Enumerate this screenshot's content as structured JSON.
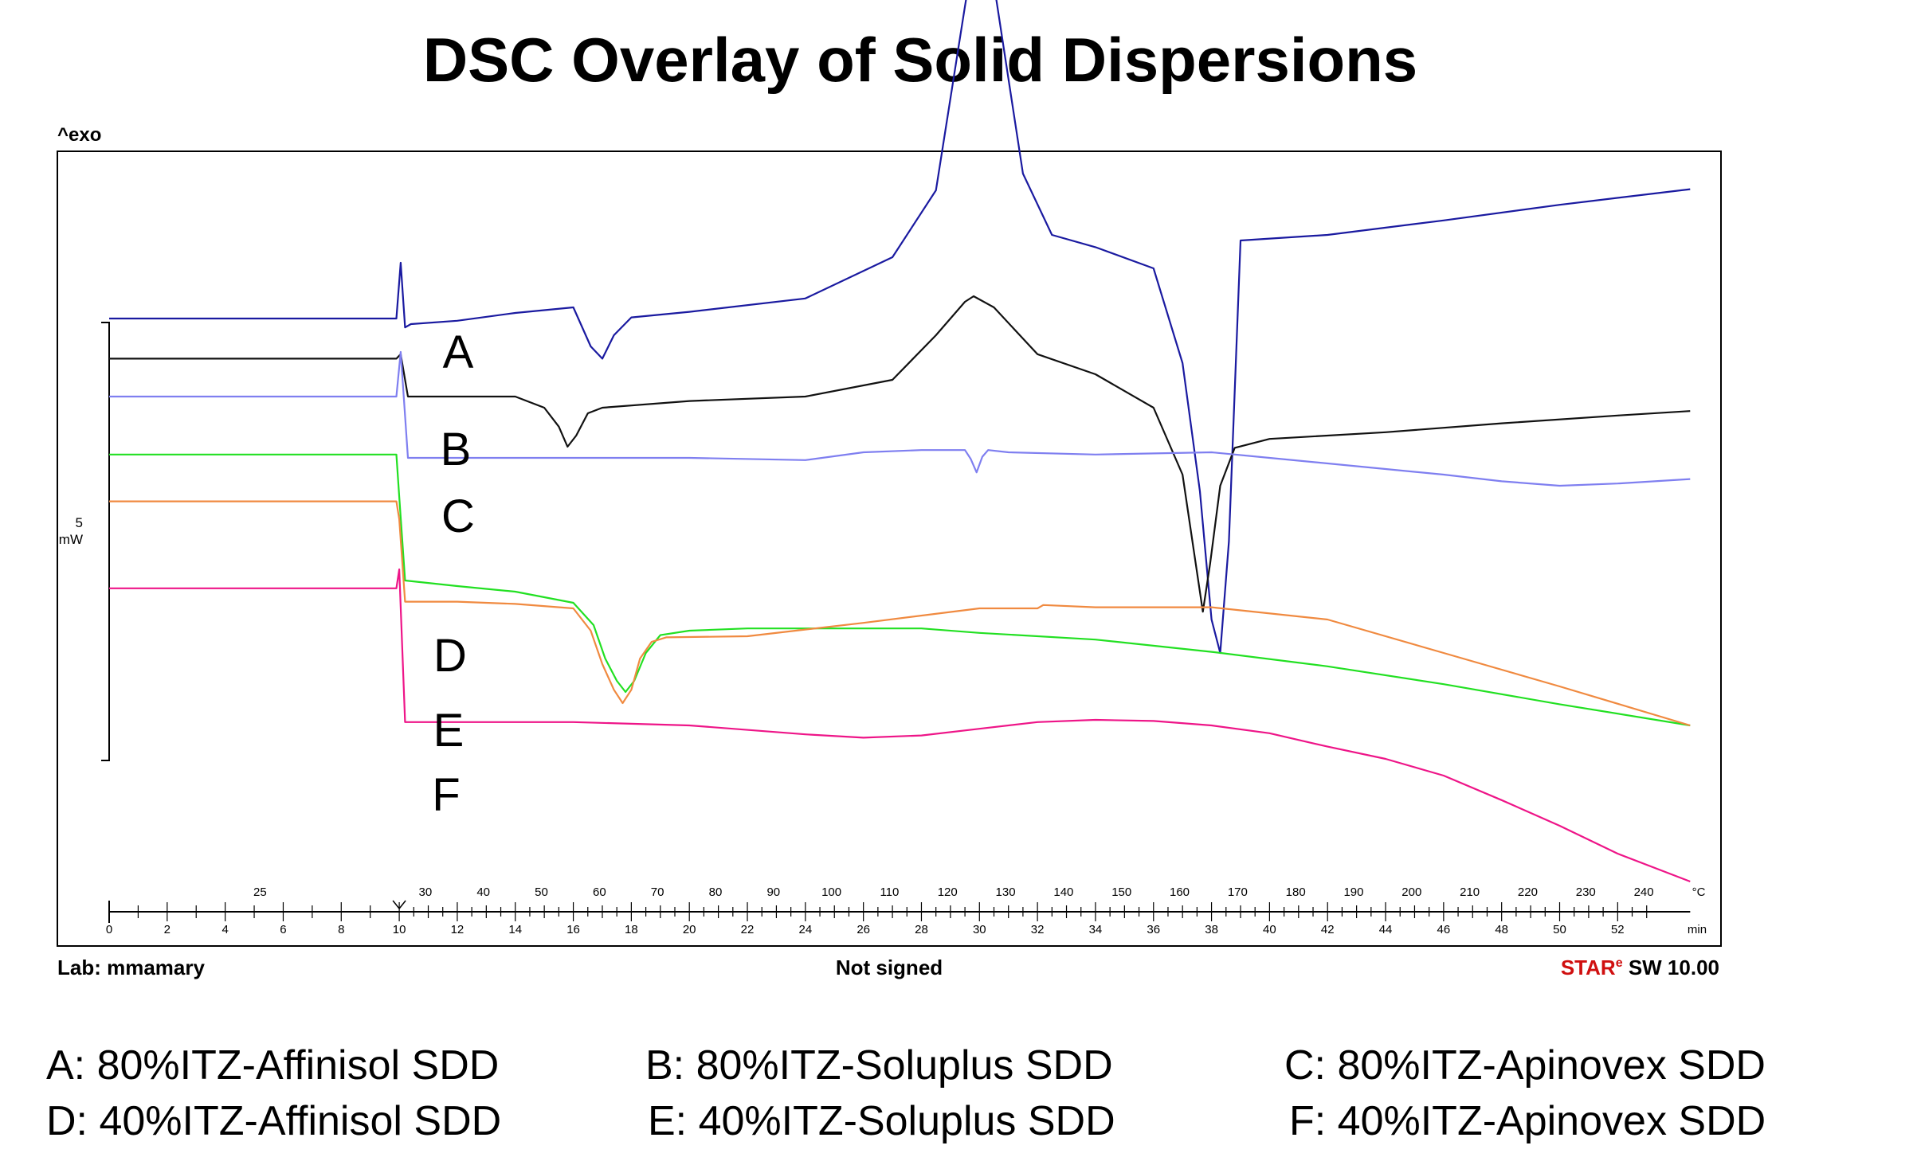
{
  "title": "DSC Overlay of Solid Dispersions",
  "y_axis_label": "^exo",
  "scale_bar": {
    "value": "5",
    "unit": "mW"
  },
  "footer": {
    "left": "Lab: mmamary",
    "center": "Not signed",
    "right_brand_prefix": "STAR",
    "right_brand_sup": "e",
    "right_suffix": "SW 10.00"
  },
  "axes": {
    "temp_unit": "°C",
    "time_unit": "min",
    "temp_ticks": [
      "25",
      "30",
      "40",
      "50",
      "60",
      "70",
      "80",
      "90",
      "100",
      "110",
      "120",
      "130",
      "140",
      "150",
      "160",
      "170",
      "180",
      "190",
      "200",
      "210",
      "220",
      "230",
      "240"
    ],
    "time_ticks": [
      "0",
      "2",
      "4",
      "6",
      "8",
      "10",
      "12",
      "14",
      "16",
      "18",
      "20",
      "22",
      "24",
      "26",
      "28",
      "30",
      "32",
      "34",
      "36",
      "38",
      "40",
      "42",
      "44",
      "46",
      "48",
      "50",
      "52"
    ],
    "time_range": [
      0,
      54.5
    ]
  },
  "legend": {
    "A": "A: 80%ITZ-Affinisol SDD",
    "B": "B: 80%ITZ-Soluplus SDD",
    "C": "C: 80%ITZ-Apinovex SDD",
    "D": "D: 40%ITZ-Affinisol SDD",
    "E": "E: 40%ITZ-Soluplus SDD",
    "F": "F: 40%ITZ-Apinovex SDD"
  },
  "chart_data": {
    "type": "line",
    "x_unit": "min",
    "series": [
      {
        "name": "A",
        "color": "#1a1aa0",
        "label": "A",
        "x": [
          0,
          9.9,
          10.05,
          10.2,
          10.4,
          12,
          14,
          16,
          16.6,
          17,
          17.4,
          18,
          20,
          24,
          27,
          28.5,
          29.5,
          30.0,
          30.5,
          31.5,
          32.5,
          34,
          36,
          37,
          37.6,
          38.0,
          38.3,
          38.6,
          39,
          42,
          46,
          50,
          54.5
        ],
        "y": [
          20.0,
          20.0,
          25.0,
          19.2,
          19.5,
          19.8,
          20.5,
          21.0,
          17.5,
          16.4,
          18.5,
          20.1,
          20.6,
          21.8,
          25.5,
          31.5,
          48.0,
          56.0,
          50.0,
          33.0,
          27.5,
          26.4,
          24.5,
          16.0,
          4.5,
          -7.0,
          -10.0,
          0.0,
          27.0,
          27.5,
          28.8,
          30.2,
          31.6
        ]
      },
      {
        "name": "B",
        "color": "#111111",
        "label": "B",
        "x": [
          0,
          9.9,
          10.05,
          10.3,
          12,
          14,
          15,
          15.5,
          15.8,
          16.1,
          16.5,
          17,
          20,
          24,
          27,
          28.5,
          29.5,
          29.8,
          30.5,
          32,
          34,
          36,
          37.0,
          37.4,
          37.7,
          37.95,
          38.3,
          38.8,
          40,
          44,
          48,
          52,
          54.5
        ],
        "y": [
          16.4,
          16.4,
          16.8,
          13.0,
          13.0,
          13.0,
          12.0,
          10.3,
          8.5,
          9.5,
          11.5,
          12.0,
          12.6,
          13.0,
          14.5,
          18.5,
          21.5,
          22.0,
          21.0,
          16.8,
          15.0,
          12.0,
          6.0,
          -1.0,
          -6.3,
          -2.0,
          5.0,
          8.4,
          9.2,
          9.8,
          10.6,
          11.3,
          11.7
        ]
      },
      {
        "name": "C",
        "color": "#7f7ff0",
        "label": "C",
        "x": [
          0,
          9.9,
          10.05,
          10.3,
          12,
          20,
          24,
          26,
          28,
          29.5,
          29.7,
          29.9,
          30.1,
          30.3,
          31,
          34,
          38,
          40,
          44,
          46,
          48,
          50,
          52,
          54.5
        ],
        "y": [
          13.0,
          13.0,
          17.0,
          7.5,
          7.5,
          7.5,
          7.3,
          8.0,
          8.2,
          8.2,
          7.4,
          6.2,
          7.6,
          8.2,
          8.0,
          7.8,
          8.0,
          7.5,
          6.5,
          6.0,
          5.4,
          5.0,
          5.2,
          5.6
        ]
      },
      {
        "name": "D",
        "color": "#22e022",
        "label": "D",
        "x": [
          0,
          9.9,
          10.0,
          10.2,
          12,
          14,
          16,
          16.7,
          17.1,
          17.5,
          17.8,
          18.1,
          18.5,
          19,
          20,
          22,
          24,
          26,
          28,
          30,
          34,
          38,
          42,
          46,
          50,
          54.5
        ],
        "y": [
          7.8,
          7.8,
          4.0,
          -3.5,
          -4.0,
          -4.5,
          -5.5,
          -7.5,
          -10.5,
          -12.5,
          -13.5,
          -12.5,
          -10.0,
          -8.4,
          -8.0,
          -7.8,
          -7.8,
          -7.8,
          -7.8,
          -8.2,
          -8.8,
          -9.9,
          -11.2,
          -12.8,
          -14.6,
          -16.5
        ]
      },
      {
        "name": "E",
        "color": "#f08a40",
        "label": "E",
        "x": [
          0,
          9.9,
          10.0,
          10.2,
          12,
          14,
          16,
          16.6,
          17.0,
          17.4,
          17.7,
          18.0,
          18.3,
          18.7,
          19.2,
          22,
          26,
          30,
          32,
          32.2,
          34,
          38,
          42,
          46,
          50,
          54.5
        ],
        "y": [
          3.6,
          3.6,
          2.0,
          -5.4,
          -5.4,
          -5.6,
          -6.0,
          -8.0,
          -11.0,
          -13.3,
          -14.5,
          -13.3,
          -10.5,
          -9.0,
          -8.6,
          -8.5,
          -7.3,
          -6.0,
          -6.0,
          -5.7,
          -5.9,
          -5.9,
          -7.0,
          -10.0,
          -13.0,
          -16.5
        ]
      },
      {
        "name": "F",
        "color": "#ee1588",
        "label": "F",
        "x": [
          0,
          9.9,
          10.0,
          10.2,
          12,
          16,
          20,
          24,
          26,
          28,
          30,
          32,
          34,
          36,
          38,
          40,
          42,
          44,
          46,
          48,
          50,
          52,
          54.5
        ],
        "y": [
          -4.2,
          -4.2,
          -2.5,
          -16.2,
          -16.2,
          -16.2,
          -16.5,
          -17.3,
          -17.6,
          -17.4,
          -16.8,
          -16.2,
          -16.0,
          -16.1,
          -16.5,
          -17.2,
          -18.4,
          -19.5,
          -21.0,
          -23.2,
          -25.5,
          -28.0,
          -30.5
        ]
      }
    ]
  }
}
